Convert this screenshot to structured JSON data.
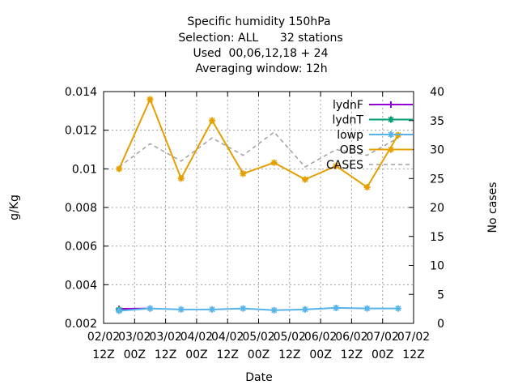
{
  "chart_data": {
    "type": "line",
    "title_lines": [
      "Specific humidity 150hPa",
      "Selection: ALL      32 stations",
      "Used  00,06,12,18 + 24",
      "Averaging window: 12h"
    ],
    "xlabel": "Date",
    "ylabel": "g/Kg",
    "y2label": "No cases",
    "x_ticks": [
      [
        "02/02",
        "12Z"
      ],
      [
        "03/02",
        "00Z"
      ],
      [
        "03/02",
        "12Z"
      ],
      [
        "04/02",
        "00Z"
      ],
      [
        "04/02",
        "12Z"
      ],
      [
        "05/02",
        "00Z"
      ],
      [
        "05/02",
        "12Z"
      ],
      [
        "06/02",
        "00Z"
      ],
      [
        "06/02",
        "12Z"
      ],
      [
        "07/02",
        "00Z"
      ],
      [
        "07/02",
        "12Z"
      ]
    ],
    "xlim": [
      0,
      10
    ],
    "ylim": [
      0.002,
      0.014
    ],
    "y_ticks": [
      "0.002",
      "0.004",
      "0.006",
      "0.008",
      "0.01",
      "0.012",
      "0.014"
    ],
    "y2lim": [
      0,
      40
    ],
    "y2_ticks": [
      "0",
      "5",
      "10",
      "15",
      "20",
      "25",
      "30",
      "35",
      "40"
    ],
    "grid": true,
    "legend_position": "top-right",
    "x": [
      0.5,
      1.5,
      2.5,
      3.5,
      4.5,
      5.5,
      6.5,
      7.5,
      8.5,
      9.5
    ],
    "series": [
      {
        "name": "lydnF",
        "axis": "left",
        "color": "#9400d3",
        "marker": "plus",
        "x": [
          0.5,
          1.5
        ],
        "values": [
          0.00275,
          0.00277
        ]
      },
      {
        "name": "lydnT",
        "axis": "left",
        "color": "#009e73",
        "marker": "star",
        "x": [
          0.5
        ],
        "values": [
          0.0027
        ]
      },
      {
        "name": "lowp",
        "axis": "left",
        "color": "#56b4e9",
        "marker": "star",
        "values": [
          0.00265,
          0.00277,
          0.00272,
          0.00272,
          0.00277,
          0.00268,
          0.00272,
          0.0028,
          0.00277,
          0.00277
        ]
      },
      {
        "name": "OBS",
        "axis": "left",
        "color": "#e69f00",
        "marker": "star",
        "values": [
          0.01,
          0.0136,
          0.0095,
          0.0125,
          0.00975,
          0.01032,
          0.00945,
          0.01015,
          0.00905,
          0.01175
        ]
      },
      {
        "name": "CASES",
        "axis": "right",
        "color": "#a0a0a0",
        "dashed": true,
        "values": [
          27,
          31,
          28,
          32,
          29,
          33,
          27,
          30,
          29,
          32
        ]
      }
    ]
  }
}
